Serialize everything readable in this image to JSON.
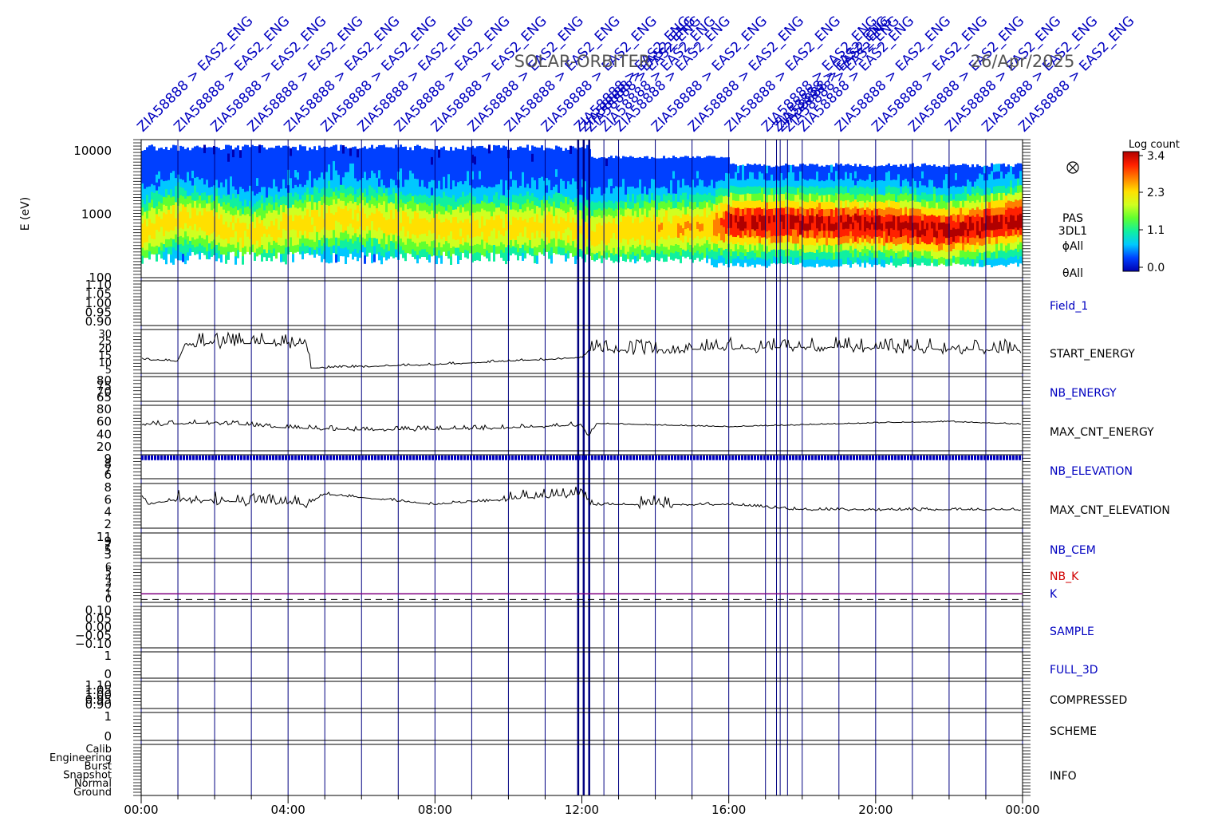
{
  "title": "SOLAR-ORBITER",
  "date": "26/Apr/2025",
  "top_annotation": "ZIA58888 > EAS2_ENG",
  "colorbar": {
    "label": "Log count",
    "ticks": [
      "3.4",
      "2.3",
      "1.1",
      "0.0"
    ],
    "stops": [
      "#0000b0",
      "#0040ff",
      "#00c8ff",
      "#10f0a0",
      "#60ff30",
      "#d0ff20",
      "#ffe000",
      "#ff8000",
      "#ff2000",
      "#b00000"
    ]
  },
  "colors": {
    "axis": "#000000",
    "grid": "#000080",
    "blue_label": "#0000c0",
    "red_label": "#d00000",
    "purple_line": "#800080"
  },
  "x_axis": {
    "ticks": [
      "00:00",
      "04:00",
      "08:00",
      "12:00",
      "16:00",
      "20:00",
      "00:00"
    ],
    "range_hours": [
      0,
      24
    ]
  },
  "chart_data": {
    "type": "line",
    "x_unit": "hours",
    "x_range": [
      0,
      24
    ],
    "event_markers_hours": [
      0,
      1,
      2,
      3,
      4,
      5,
      6,
      7,
      8,
      9,
      10,
      11,
      11.9,
      12.05,
      12.2,
      12.6,
      13,
      14,
      15,
      16,
      17,
      17.3,
      17.4,
      17.6,
      18,
      19,
      20,
      21,
      22,
      23,
      24
    ],
    "panels": [
      {
        "id": "spectrogram",
        "type": "heatmap",
        "ylabel": "E (eV)",
        "y_log": true,
        "y_range": [
          100,
          15000
        ],
        "yticks": [
          "10000",
          "1000",
          "100"
        ],
        "right_labels": [
          "PAS",
          "3DL1",
          "ϕAll",
          "θAll"
        ],
        "right_icon": "crossed-circle-icon",
        "peak_energy_ev": [
          [
            0,
            500
          ],
          [
            1,
            850
          ],
          [
            3,
            500
          ],
          [
            5.5,
            900
          ],
          [
            8,
            600
          ],
          [
            11.5,
            650
          ],
          [
            12.2,
            500
          ],
          [
            14,
            600
          ],
          [
            15.5,
            650
          ],
          [
            16,
            750
          ],
          [
            20,
            700
          ],
          [
            22,
            550
          ],
          [
            24,
            850
          ]
        ],
        "peak_level": [
          [
            0,
            1.9
          ],
          [
            12,
            1.9
          ],
          [
            15.5,
            2.1
          ],
          [
            16,
            2.9
          ],
          [
            24,
            3.0
          ]
        ]
      },
      {
        "id": "field1",
        "label": "Field_1",
        "label_color": "blue",
        "yticks": [
          "1.10",
          "1.05",
          "1.00",
          "0.95",
          "0.90"
        ],
        "y_range": [
          0.9,
          1.1
        ]
      },
      {
        "id": "start_energy",
        "label": "START_ENERGY",
        "label_color": "black",
        "yticks": [
          "30",
          "25",
          "20",
          "15",
          "10",
          "5"
        ],
        "y_range": [
          5,
          30
        ],
        "series": [
          [
            0,
            13
          ],
          [
            1,
            12
          ],
          [
            1.2,
            22
          ],
          [
            4.5,
            22
          ],
          [
            4.6,
            8
          ],
          [
            8,
            10
          ],
          [
            12,
            14
          ],
          [
            12.2,
            18
          ],
          [
            16,
            19
          ],
          [
            18,
            20
          ],
          [
            24,
            18
          ]
        ]
      },
      {
        "id": "nb_energy",
        "label": "NB_ENERGY",
        "label_color": "blue",
        "yticks": [
          "80",
          "75",
          "70",
          "65"
        ],
        "y_range": [
          65,
          80
        ]
      },
      {
        "id": "max_cnt_energy",
        "label": "MAX_CNT_ENERGY",
        "label_color": "black",
        "yticks": [
          "80",
          "60",
          "40",
          "20"
        ],
        "y_range": [
          15,
          85
        ],
        "series": [
          [
            0,
            55
          ],
          [
            2,
            58
          ],
          [
            4,
            50
          ],
          [
            6,
            47
          ],
          [
            8,
            48
          ],
          [
            10,
            50
          ],
          [
            12,
            55
          ],
          [
            12.2,
            35
          ],
          [
            12.4,
            57
          ],
          [
            16,
            52
          ],
          [
            20,
            58
          ],
          [
            22,
            60
          ],
          [
            24,
            56
          ]
        ]
      },
      {
        "id": "nb_elevation",
        "label": "NB_ELEVATION",
        "label_color": "blue",
        "yticks": [
          "9",
          "8",
          "7",
          "6"
        ],
        "y_range": [
          5.5,
          9.5
        ],
        "constant": 9
      },
      {
        "id": "max_cnt_elevation",
        "label": "MAX_CNT_ELEVATION",
        "label_color": "black",
        "yticks": [
          "8",
          "6",
          "4",
          "2"
        ],
        "y_range": [
          0.5,
          9
        ],
        "series": [
          [
            0,
            7
          ],
          [
            0.2,
            5
          ],
          [
            1,
            6
          ],
          [
            4.5,
            5
          ],
          [
            5,
            7
          ],
          [
            8,
            5
          ],
          [
            12,
            7
          ],
          [
            12.2,
            5
          ],
          [
            16,
            5
          ],
          [
            18,
            4
          ],
          [
            24,
            4
          ]
        ]
      },
      {
        "id": "nb_cem",
        "label": "NB_CEM",
        "label_color": "blue",
        "yticks": [
          "11",
          "9",
          "7",
          "5",
          "3"
        ],
        "y_range": [
          2,
          12
        ]
      },
      {
        "id": "nb_k",
        "label": "NB_K",
        "label_color": "red",
        "label2": "K",
        "label2_color": "blue",
        "yticks": [
          "6",
          "5",
          "4",
          "3",
          "2",
          "1",
          "0"
        ],
        "y_range": [
          -0.5,
          6.5
        ],
        "constant": 1
      },
      {
        "id": "sample",
        "label": "SAMPLE",
        "label_color": "blue",
        "yticks": [
          "0.10",
          "0.05",
          "0.00",
          "−0.05",
          "−0.10"
        ],
        "y_range": [
          -0.12,
          0.12
        ]
      },
      {
        "id": "full_3d",
        "label": "FULL_3D",
        "label_color": "blue",
        "yticks": [
          "1",
          "0"
        ],
        "y_range": [
          -0.3,
          1.3
        ]
      },
      {
        "id": "compressed",
        "label": "COMPRESSED",
        "label_color": "black",
        "yticks": [
          "1.10",
          "1.05",
          "1.00",
          "0.95",
          "0.90"
        ],
        "y_range": [
          0.9,
          1.1
        ]
      },
      {
        "id": "scheme",
        "label": "SCHEME",
        "label_color": "black",
        "yticks": [
          "1",
          "0"
        ],
        "y_range": [
          -0.3,
          1.3
        ]
      },
      {
        "id": "info",
        "label": "INFO",
        "label_color": "black",
        "yticks": [
          "Calib",
          "Engineering",
          "Burst",
          "Snapshot",
          "Normal",
          "Ground"
        ],
        "y_range": [
          0,
          5
        ]
      }
    ]
  }
}
